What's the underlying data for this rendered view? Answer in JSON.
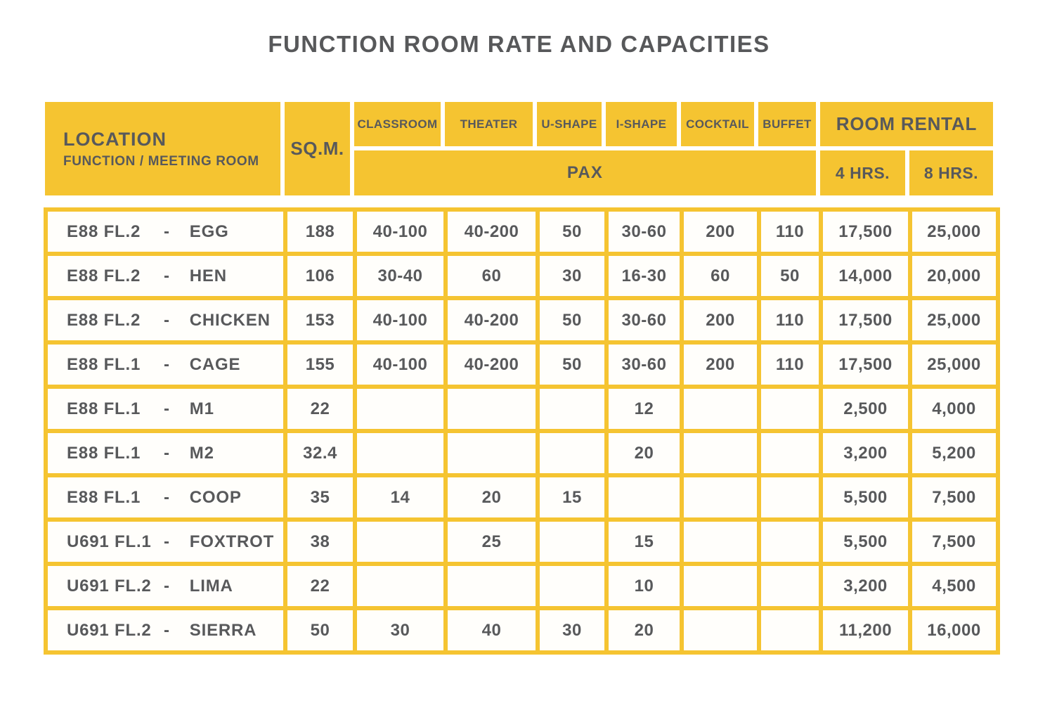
{
  "title": "FUNCTION ROOM RATE AND CAPACITIES",
  "dash": "-",
  "colors": {
    "accent_yellow": "#F5C431",
    "text_dark": "#58595B",
    "cell_background": "#FFFEFB"
  },
  "header": {
    "location_label": "LOCATION",
    "location_sublabel": "FUNCTION / MEETING ROOM",
    "sqm_label": "SQ.M.",
    "pax_columns": [
      "CLASSROOM",
      "THEATER",
      "U-SHAPE",
      "I-SHAPE",
      "COCKTAIL",
      "BUFFET"
    ],
    "pax_label": "PAX",
    "room_rental_label": "ROOM RENTAL",
    "rental_columns": [
      "4 HRS.",
      "8 HRS."
    ]
  },
  "rows": [
    {
      "location": "E88 FL.2",
      "room": "EGG",
      "sqm": "188",
      "classroom": "40-100",
      "theater": "40-200",
      "u_shape": "50",
      "i_shape": "30-60",
      "cocktail": "200",
      "buffet": "110",
      "rate_4hrs": "17,500",
      "rate_8hrs": "25,000"
    },
    {
      "location": "E88 FL.2",
      "room": "HEN",
      "sqm": "106",
      "classroom": "30-40",
      "theater": "60",
      "u_shape": "30",
      "i_shape": "16-30",
      "cocktail": "60",
      "buffet": "50",
      "rate_4hrs": "14,000",
      "rate_8hrs": "20,000"
    },
    {
      "location": "E88 FL.2",
      "room": "CHICKEN",
      "sqm": "153",
      "classroom": "40-100",
      "theater": "40-200",
      "u_shape": "50",
      "i_shape": "30-60",
      "cocktail": "200",
      "buffet": "110",
      "rate_4hrs": "17,500",
      "rate_8hrs": "25,000"
    },
    {
      "location": "E88 FL.1",
      "room": "CAGE",
      "sqm": "155",
      "classroom": "40-100",
      "theater": "40-200",
      "u_shape": "50",
      "i_shape": "30-60",
      "cocktail": "200",
      "buffet": "110",
      "rate_4hrs": "17,500",
      "rate_8hrs": "25,000"
    },
    {
      "location": "E88 FL.1",
      "room": "M1",
      "sqm": "22",
      "classroom": "",
      "theater": "",
      "u_shape": "",
      "i_shape": "12",
      "cocktail": "",
      "buffet": "",
      "rate_4hrs": "2,500",
      "rate_8hrs": "4,000"
    },
    {
      "location": "E88 FL.1",
      "room": "M2",
      "sqm": "32.4",
      "classroom": "",
      "theater": "",
      "u_shape": "",
      "i_shape": "20",
      "cocktail": "",
      "buffet": "",
      "rate_4hrs": "3,200",
      "rate_8hrs": "5,200"
    },
    {
      "location": "E88 FL.1",
      "room": "COOP",
      "sqm": "35",
      "classroom": "14",
      "theater": "20",
      "u_shape": "15",
      "i_shape": "",
      "cocktail": "",
      "buffet": "",
      "rate_4hrs": "5,500",
      "rate_8hrs": "7,500"
    },
    {
      "location": "U691 FL.1",
      "room": "FOXTROT",
      "sqm": "38",
      "classroom": "",
      "theater": "25",
      "u_shape": "",
      "i_shape": "15",
      "cocktail": "",
      "buffet": "",
      "rate_4hrs": "5,500",
      "rate_8hrs": "7,500"
    },
    {
      "location": "U691 FL.2",
      "room": "LIMA",
      "sqm": "22",
      "classroom": "",
      "theater": "",
      "u_shape": "",
      "i_shape": "10",
      "cocktail": "",
      "buffet": "",
      "rate_4hrs": "3,200",
      "rate_8hrs": "4,500"
    },
    {
      "location": "U691 FL.2",
      "room": "SIERRA",
      "sqm": "50",
      "classroom": "30",
      "theater": "40",
      "u_shape": "30",
      "i_shape": "20",
      "cocktail": "",
      "buffet": "",
      "rate_4hrs": "11,200",
      "rate_8hrs": "16,000"
    }
  ]
}
